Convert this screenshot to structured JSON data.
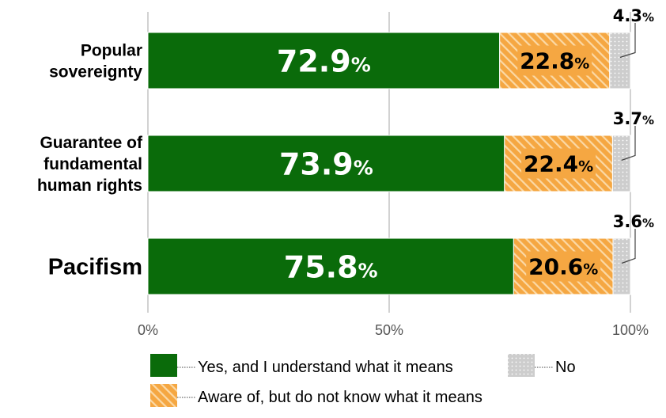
{
  "chart_data": {
    "type": "bar",
    "orientation": "horizontal",
    "stacked": true,
    "categories": [
      "Popular sovereignty",
      "Guarantee of fundamental human rights",
      "Pacifism"
    ],
    "category_lines": [
      [
        "Popular",
        "sovereignty"
      ],
      [
        "Guarantee of",
        "fundamental",
        "human rights"
      ],
      [
        "Pacifism"
      ]
    ],
    "series": [
      {
        "name": "Yes, and I understand what it means",
        "values": [
          72.9,
          73.9,
          75.8
        ],
        "color": "#0a6b0a",
        "pattern": "solid"
      },
      {
        "name": "Aware of, but do not know what it means",
        "values": [
          22.8,
          22.4,
          20.6
        ],
        "color": "#f5a742",
        "pattern": "diagonal-stripes"
      },
      {
        "name": "No",
        "values": [
          4.3,
          3.7,
          3.6
        ],
        "color": "#cfcfcf",
        "pattern": "dots"
      }
    ],
    "percent_sign": "%",
    "xlim": [
      0,
      100
    ],
    "xticks": [
      0,
      50,
      100
    ],
    "xtick_labels": [
      "0%",
      "50%",
      "100%"
    ],
    "grid": true,
    "legend_position": "bottom"
  }
}
